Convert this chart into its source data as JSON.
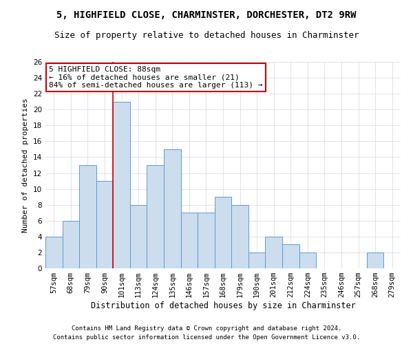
{
  "title1": "5, HIGHFIELD CLOSE, CHARMINSTER, DORCHESTER, DT2 9RW",
  "title2": "Size of property relative to detached houses in Charminster",
  "xlabel": "Distribution of detached houses by size in Charminster",
  "ylabel": "Number of detached properties",
  "categories": [
    "57sqm",
    "68sqm",
    "79sqm",
    "90sqm",
    "101sqm",
    "113sqm",
    "124sqm",
    "135sqm",
    "146sqm",
    "157sqm",
    "168sqm",
    "179sqm",
    "190sqm",
    "201sqm",
    "212sqm",
    "224sqm",
    "235sqm",
    "246sqm",
    "257sqm",
    "268sqm",
    "279sqm"
  ],
  "values": [
    4,
    6,
    13,
    11,
    21,
    8,
    13,
    15,
    7,
    7,
    9,
    8,
    2,
    4,
    3,
    2,
    0,
    0,
    0,
    2,
    0
  ],
  "bar_color": "#ccdded",
  "bar_edge_color": "#5b9bd5",
  "highlight_index": 3,
  "highlight_line_color": "#cc0000",
  "annotation_text": "5 HIGHFIELD CLOSE: 88sqm\n← 16% of detached houses are smaller (21)\n84% of semi-detached houses are larger (113) →",
  "annotation_box_color": "#ffffff",
  "annotation_box_edge": "#cc0000",
  "ylim": [
    0,
    26
  ],
  "yticks": [
    0,
    2,
    4,
    6,
    8,
    10,
    12,
    14,
    16,
    18,
    20,
    22,
    24,
    26
  ],
  "grid_color": "#d0d8e8",
  "footnote1": "Contains HM Land Registry data © Crown copyright and database right 2024.",
  "footnote2": "Contains public sector information licensed under the Open Government Licence v3.0.",
  "bg_color": "#ffffff",
  "title1_fontsize": 10,
  "title2_fontsize": 9,
  "xlabel_fontsize": 8.5,
  "ylabel_fontsize": 8,
  "tick_fontsize": 7.5,
  "annotation_fontsize": 8,
  "footnote_fontsize": 6.5
}
